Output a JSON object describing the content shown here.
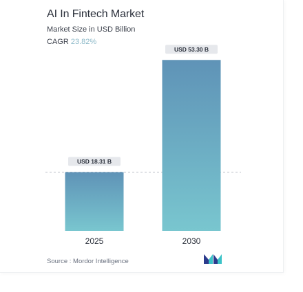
{
  "header": {
    "title": "AI In Fintech Market",
    "subtitle": "Market Size in USD Billion",
    "cagr_label": "CAGR",
    "cagr_value": "23.82%"
  },
  "footer": {
    "source_label": "Source :",
    "source_name": "Mordor Intelligence",
    "logo_icon": "mordor-intelligence-logo-icon"
  },
  "colors": {
    "bar_top": "#5f93b7",
    "bar_bottom": "#79c6cf",
    "label_bg": "#e6e8ec",
    "dash": "#b8bcc4",
    "logo_dark": "#2b3a8c",
    "logo_teal": "#3cc3c8"
  },
  "chart_data": {
    "type": "bar",
    "categories": [
      "2025",
      "2030"
    ],
    "values": [
      18.31,
      53.3
    ],
    "data_labels": [
      "USD 18.31 B",
      "USD 53.30 B"
    ],
    "ylim": [
      0,
      60
    ],
    "grid": false,
    "reference_line": 18.31
  }
}
